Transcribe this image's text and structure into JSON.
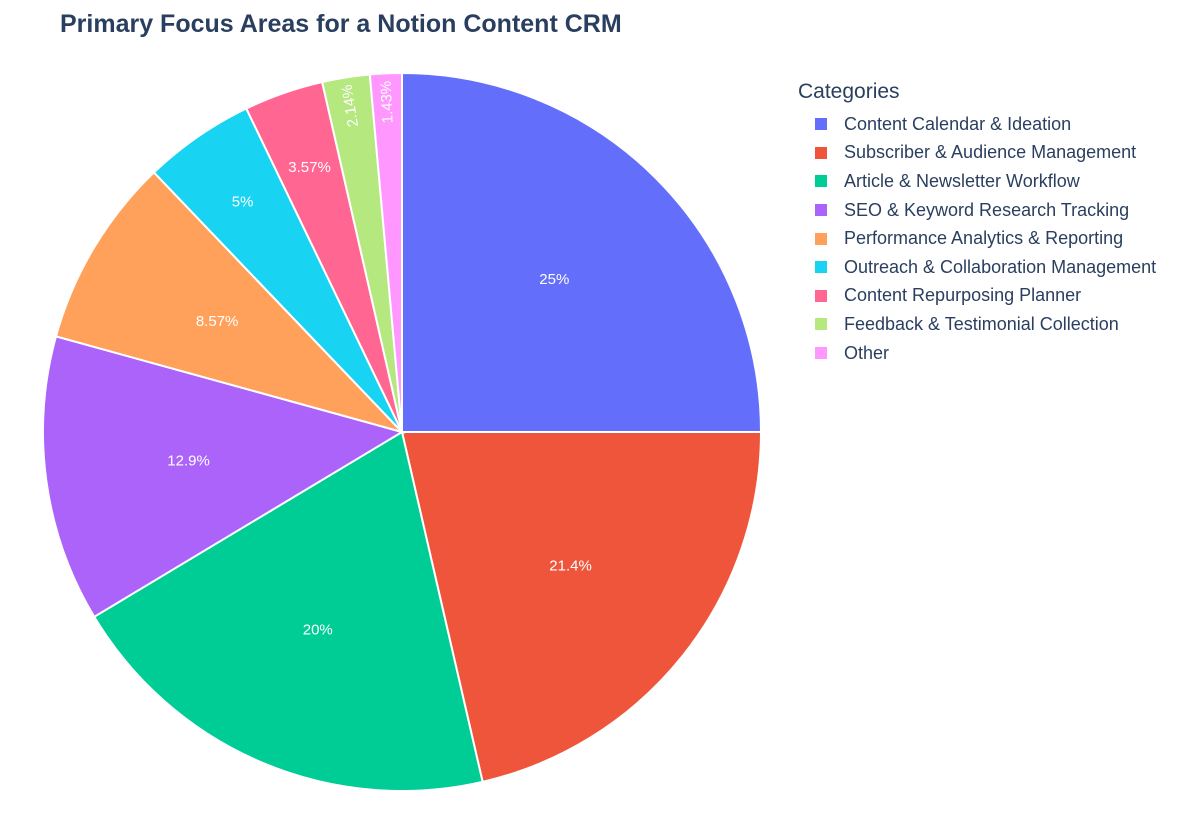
{
  "chart_data": {
    "type": "pie",
    "title": "Primary Focus Areas for a Notion Content CRM",
    "legend_title": "Categories",
    "legend_position": "right",
    "categories": [
      "Content Calendar & Ideation",
      "Subscriber & Audience Management",
      "Article & Newsletter Workflow",
      "SEO & Keyword Research Tracking",
      "Performance Analytics & Reporting",
      "Outreach & Collaboration Management",
      "Content Repurposing Planner",
      "Feedback & Testimonial Collection",
      "Other"
    ],
    "values": [
      25,
      21.4,
      20,
      12.9,
      8.57,
      5,
      3.57,
      2.14,
      1.43
    ],
    "labels": [
      "25%",
      "21.4%",
      "20%",
      "12.9%",
      "8.57%",
      "5%",
      "3.57%",
      "2.14%",
      "1.43%"
    ],
    "colors": [
      "#636efa",
      "#EF553B",
      "#00cc96",
      "#ab63fa",
      "#FFA15A",
      "#19d3f3",
      "#FF6692",
      "#B6E880",
      "#FF97FF"
    ]
  }
}
